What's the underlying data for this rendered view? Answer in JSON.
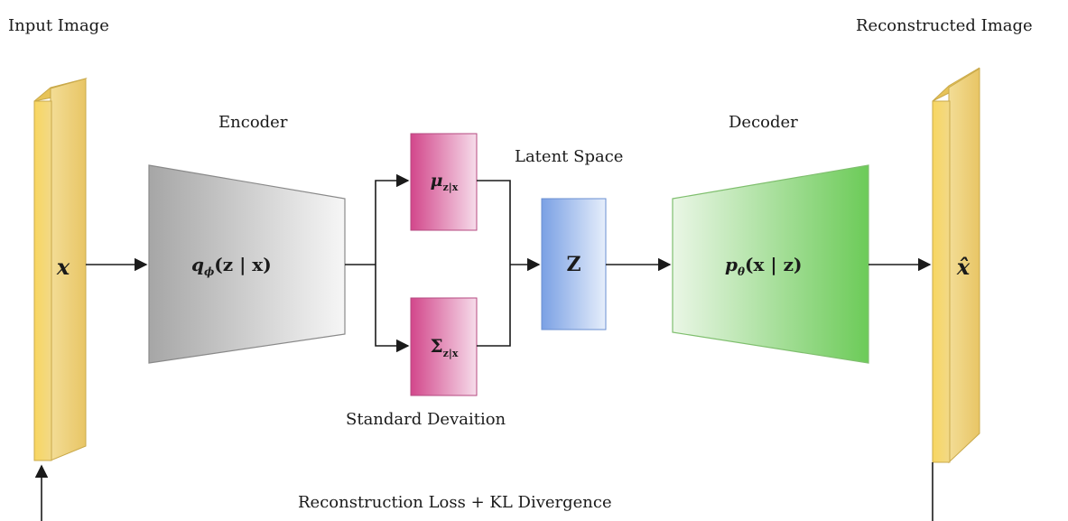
{
  "labels": {
    "input_image": "Input Image",
    "reconstructed_image": "Reconstructed Image",
    "encoder": "Encoder",
    "decoder": "Decoder",
    "latent_space": "Latent Space",
    "standard_deviation": "Standard Devaition",
    "loss": "Reconstruction Loss + KL Divergence"
  },
  "math": {
    "input_x": "x",
    "output_x": "x̂",
    "encoder_q": "q",
    "encoder_q_sub": "ϕ",
    "encoder_q_args": "(z | x)",
    "mu": "μ",
    "mu_sub": "z|x",
    "sigma": "Σ",
    "sigma_sub": "z|x",
    "z": "Z",
    "decoder_p": "p",
    "decoder_p_sub": "θ",
    "decoder_p_args": "(x | z)"
  },
  "colors": {
    "image_block": "#f5cf5a",
    "encoder_dark": "#a9a9a9",
    "encoder_light": "#f4f4f4",
    "mu_sigma": "#d95c9a",
    "latent": "#7ea4e6",
    "decoder_dark": "#6fcc5c",
    "decoder_light": "#eaf6e6"
  }
}
